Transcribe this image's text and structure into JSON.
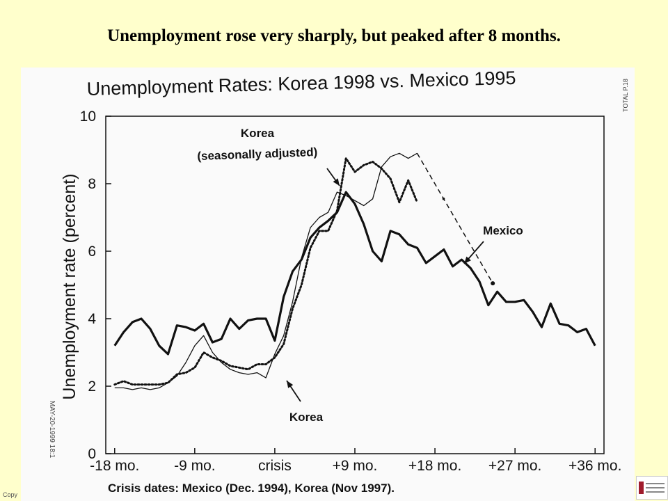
{
  "slide": {
    "title": "Unemployment rose very sharply, but peaked after 8 months.",
    "copyright": "Copy"
  },
  "side_text": {
    "top_right": "TOTAL P.18",
    "fax_stamp": "MAY-20-1999 18:1"
  },
  "chart_data": {
    "type": "line",
    "title": "Unemployment Rates: Korea 1998 vs. Mexico 1995",
    "ylabel": "Unemployment rate (percent)",
    "xlabel": "Crisis dates: Mexico (Dec. 1994), Korea (Nov 1997).",
    "xlim": [
      -19,
      37
    ],
    "ylim": [
      0,
      10
    ],
    "y_ticks": [
      "0",
      "2",
      "4",
      "6",
      "8",
      "10"
    ],
    "x_ticks": [
      {
        "x": -18,
        "label": "-18 mo."
      },
      {
        "x": -9,
        "label": "-9 mo."
      },
      {
        "x": 0,
        "label": "crisis"
      },
      {
        "x": 9,
        "label": "+9 mo."
      },
      {
        "x": 18,
        "label": "+18 mo."
      },
      {
        "x": 27,
        "label": "+27 mo."
      },
      {
        "x": 36,
        "label": "+36 mo."
      }
    ],
    "annotations": {
      "korea_sa": "Korea\n(seasonally adjusted)",
      "mexico": "Mexico",
      "korea": "Korea"
    },
    "series": [
      {
        "name": "Mexico",
        "style": "thick",
        "x": [
          -18,
          -17,
          -16,
          -15,
          -14,
          -13,
          -12,
          -11,
          -10,
          -9,
          -8,
          -7,
          -6,
          -5,
          -4,
          -3,
          -2,
          -1,
          0,
          1,
          2,
          3,
          4,
          5,
          6,
          7,
          8,
          9,
          10,
          11,
          12,
          13,
          14,
          15,
          16,
          17,
          18,
          19,
          20,
          21,
          22,
          23,
          24,
          25,
          26,
          27,
          28,
          29,
          30,
          31,
          32,
          33,
          34,
          35,
          36
        ],
        "values": [
          3.2,
          3.6,
          3.9,
          4.0,
          3.7,
          3.2,
          2.95,
          3.8,
          3.75,
          3.65,
          3.85,
          3.3,
          3.4,
          4.0,
          3.7,
          3.95,
          4.0,
          4.0,
          3.35,
          4.65,
          5.4,
          5.75,
          6.4,
          6.7,
          6.9,
          7.15,
          7.75,
          7.4,
          6.8,
          6.0,
          5.7,
          6.6,
          6.5,
          6.2,
          6.1,
          5.65,
          5.85,
          6.05,
          5.55,
          5.75,
          5.5,
          5.1,
          4.4,
          4.8,
          4.5,
          4.5,
          4.55,
          4.2,
          3.75,
          4.45,
          3.85,
          3.8,
          3.6,
          3.7,
          3.2
        ]
      },
      {
        "name": "Korea",
        "style": "thin",
        "x": [
          -18,
          -17,
          -16,
          -15,
          -14,
          -13,
          -12,
          -11,
          -10,
          -9,
          -8,
          -7,
          -6,
          -5,
          -4,
          -3,
          -2,
          -1,
          0,
          1,
          2,
          3,
          4,
          5,
          6,
          7,
          8,
          9,
          10,
          11,
          12,
          13,
          14,
          15,
          16
        ],
        "values": [
          1.95,
          1.95,
          1.9,
          1.95,
          1.9,
          1.95,
          2.1,
          2.3,
          2.7,
          3.2,
          3.5,
          3.0,
          2.7,
          2.5,
          2.4,
          2.35,
          2.4,
          2.25,
          2.95,
          3.5,
          4.5,
          5.8,
          6.7,
          7.0,
          7.15,
          7.75,
          7.65,
          7.5,
          7.35,
          7.55,
          8.5,
          8.8,
          8.9,
          8.75,
          8.9
        ]
      },
      {
        "name": "Korea (seasonally adjusted)",
        "style": "dotted",
        "x": [
          -18,
          -17,
          -16,
          -15,
          -14,
          -13,
          -12,
          -11,
          -10,
          -9,
          -8,
          -7,
          -6,
          -5,
          -4,
          -3,
          -2,
          -1,
          0,
          1,
          2,
          3,
          4,
          5,
          6,
          7,
          8,
          9,
          10,
          11,
          12,
          13,
          14,
          15,
          16
        ],
        "values": [
          2.05,
          2.15,
          2.05,
          2.05,
          2.05,
          2.05,
          2.1,
          2.35,
          2.4,
          2.55,
          3.0,
          2.85,
          2.75,
          2.6,
          2.55,
          2.5,
          2.65,
          2.65,
          2.85,
          3.25,
          4.3,
          5.0,
          6.1,
          6.6,
          6.6,
          7.2,
          8.75,
          8.35,
          8.55,
          8.65,
          8.45,
          8.15,
          7.45,
          8.1,
          7.45
        ]
      },
      {
        "name": "Mexico (projection)",
        "style": "dashed",
        "x": [
          16,
          24.5
        ],
        "values": [
          8.9,
          5.05
        ]
      }
    ]
  }
}
